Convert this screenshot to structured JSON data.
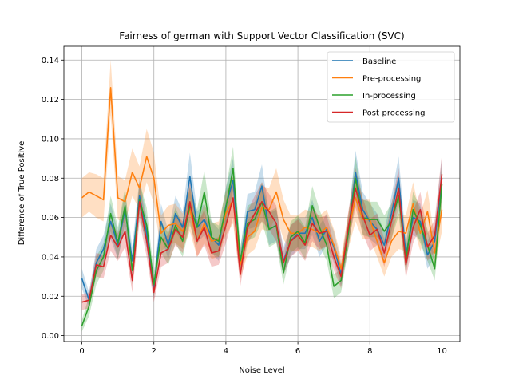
{
  "chart_data": {
    "type": "line",
    "title": "Fairness of german with Support Vector Classification (SVC)",
    "xlabel": "Noise Level",
    "ylabel": "Difference of True Positive",
    "xlim": [
      -0.5,
      10.5
    ],
    "ylim": [
      -0.003,
      0.147
    ],
    "xticks": [
      0,
      2,
      4,
      6,
      8,
      10
    ],
    "yticks": [
      0.0,
      0.02,
      0.04,
      0.06,
      0.08,
      0.1,
      0.12,
      0.14
    ],
    "ytick_labels": [
      "0.00",
      "0.02",
      "0.04",
      "0.06",
      "0.08",
      "0.10",
      "0.12",
      "0.14"
    ],
    "grid": true,
    "legend_position": "top-right",
    "x": [
      0,
      0.2,
      0.4,
      0.6,
      0.8,
      1.0,
      1.2,
      1.4,
      1.6,
      1.8,
      2.0,
      2.2,
      2.4,
      2.6,
      2.8,
      3.0,
      3.2,
      3.4,
      3.6,
      3.8,
      4.0,
      4.2,
      4.4,
      4.6,
      4.8,
      5.0,
      5.2,
      5.4,
      5.6,
      5.8,
      6.0,
      6.2,
      6.4,
      6.6,
      6.8,
      7.0,
      7.2,
      7.4,
      7.6,
      7.8,
      8.0,
      8.2,
      8.4,
      8.6,
      8.8,
      9.0,
      9.2,
      9.4,
      9.6,
      9.8,
      10.0
    ],
    "series": [
      {
        "name": "Baseline",
        "color": "#1f77b4",
        "values": [
          0.029,
          0.018,
          0.037,
          0.044,
          0.058,
          0.046,
          0.064,
          0.038,
          0.071,
          0.052,
          0.024,
          0.058,
          0.046,
          0.062,
          0.055,
          0.081,
          0.055,
          0.059,
          0.05,
          0.046,
          0.066,
          0.079,
          0.037,
          0.063,
          0.064,
          0.076,
          0.054,
          0.056,
          0.038,
          0.048,
          0.052,
          0.052,
          0.06,
          0.048,
          0.054,
          0.045,
          0.031,
          0.052,
          0.083,
          0.064,
          0.058,
          0.054,
          0.046,
          0.062,
          0.08,
          0.041,
          0.06,
          0.058,
          0.041,
          0.048,
          0.08
        ],
        "lower": [
          0.024,
          0.014,
          0.031,
          0.037,
          0.049,
          0.039,
          0.055,
          0.031,
          0.062,
          0.044,
          0.019,
          0.05,
          0.039,
          0.053,
          0.047,
          0.07,
          0.047,
          0.051,
          0.042,
          0.038,
          0.057,
          0.068,
          0.031,
          0.054,
          0.055,
          0.065,
          0.046,
          0.048,
          0.031,
          0.04,
          0.044,
          0.044,
          0.051,
          0.04,
          0.046,
          0.037,
          0.025,
          0.044,
          0.072,
          0.055,
          0.049,
          0.046,
          0.039,
          0.053,
          0.069,
          0.034,
          0.051,
          0.049,
          0.034,
          0.04,
          0.069
        ],
        "upper": [
          0.034,
          0.022,
          0.044,
          0.051,
          0.067,
          0.053,
          0.073,
          0.045,
          0.08,
          0.06,
          0.029,
          0.067,
          0.053,
          0.071,
          0.063,
          0.093,
          0.063,
          0.067,
          0.058,
          0.054,
          0.075,
          0.09,
          0.044,
          0.072,
          0.073,
          0.087,
          0.062,
          0.064,
          0.045,
          0.056,
          0.06,
          0.06,
          0.069,
          0.056,
          0.062,
          0.053,
          0.037,
          0.06,
          0.094,
          0.073,
          0.067,
          0.062,
          0.053,
          0.071,
          0.091,
          0.048,
          0.069,
          0.067,
          0.048,
          0.056,
          0.091
        ]
      },
      {
        "name": "Pre-processing",
        "color": "#ff7f0e",
        "values": [
          0.07,
          0.073,
          0.071,
          0.069,
          0.126,
          0.07,
          0.068,
          0.083,
          0.075,
          0.091,
          0.08,
          0.052,
          0.056,
          0.057,
          0.053,
          0.064,
          0.048,
          0.057,
          0.048,
          0.049,
          0.062,
          0.069,
          0.036,
          0.05,
          0.053,
          0.065,
          0.064,
          0.073,
          0.059,
          0.052,
          0.052,
          0.055,
          0.054,
          0.052,
          0.055,
          0.046,
          0.034,
          0.053,
          0.07,
          0.059,
          0.059,
          0.048,
          0.037,
          0.048,
          0.053,
          0.052,
          0.067,
          0.052,
          0.063,
          0.042,
          0.064
        ],
        "lower": [
          0.06,
          0.063,
          0.06,
          0.058,
          0.112,
          0.059,
          0.057,
          0.071,
          0.064,
          0.078,
          0.067,
          0.043,
          0.046,
          0.047,
          0.044,
          0.053,
          0.04,
          0.047,
          0.039,
          0.04,
          0.051,
          0.057,
          0.029,
          0.041,
          0.044,
          0.054,
          0.053,
          0.061,
          0.049,
          0.043,
          0.043,
          0.046,
          0.045,
          0.043,
          0.046,
          0.038,
          0.028,
          0.044,
          0.058,
          0.049,
          0.049,
          0.04,
          0.03,
          0.04,
          0.044,
          0.043,
          0.056,
          0.043,
          0.052,
          0.035,
          0.053
        ],
        "upper": [
          0.08,
          0.083,
          0.082,
          0.08,
          0.14,
          0.081,
          0.079,
          0.095,
          0.086,
          0.105,
          0.093,
          0.061,
          0.066,
          0.067,
          0.062,
          0.075,
          0.056,
          0.067,
          0.057,
          0.058,
          0.073,
          0.081,
          0.043,
          0.059,
          0.062,
          0.076,
          0.075,
          0.085,
          0.069,
          0.061,
          0.061,
          0.064,
          0.063,
          0.061,
          0.064,
          0.054,
          0.04,
          0.062,
          0.082,
          0.069,
          0.069,
          0.056,
          0.044,
          0.056,
          0.062,
          0.061,
          0.078,
          0.061,
          0.074,
          0.049,
          0.075
        ]
      },
      {
        "name": "In-processing",
        "color": "#2ca02c",
        "values": [
          0.005,
          0.015,
          0.033,
          0.04,
          0.062,
          0.047,
          0.066,
          0.033,
          0.069,
          0.056,
          0.026,
          0.05,
          0.044,
          0.056,
          0.048,
          0.066,
          0.055,
          0.073,
          0.05,
          0.048,
          0.065,
          0.085,
          0.038,
          0.057,
          0.059,
          0.068,
          0.054,
          0.056,
          0.032,
          0.05,
          0.053,
          0.047,
          0.066,
          0.055,
          0.046,
          0.025,
          0.028,
          0.052,
          0.08,
          0.06,
          0.059,
          0.059,
          0.053,
          0.058,
          0.071,
          0.038,
          0.064,
          0.056,
          0.046,
          0.034,
          0.077
        ],
        "lower": [
          0.002,
          0.01,
          0.026,
          0.033,
          0.053,
          0.039,
          0.057,
          0.026,
          0.06,
          0.047,
          0.02,
          0.042,
          0.036,
          0.047,
          0.04,
          0.056,
          0.046,
          0.062,
          0.042,
          0.04,
          0.055,
          0.074,
          0.031,
          0.048,
          0.05,
          0.058,
          0.045,
          0.047,
          0.026,
          0.042,
          0.045,
          0.039,
          0.056,
          0.046,
          0.038,
          0.019,
          0.022,
          0.044,
          0.069,
          0.051,
          0.05,
          0.05,
          0.045,
          0.049,
          0.061,
          0.031,
          0.055,
          0.047,
          0.038,
          0.028,
          0.066
        ],
        "upper": [
          0.008,
          0.02,
          0.04,
          0.047,
          0.071,
          0.055,
          0.075,
          0.04,
          0.078,
          0.065,
          0.032,
          0.058,
          0.052,
          0.065,
          0.056,
          0.076,
          0.064,
          0.084,
          0.058,
          0.056,
          0.075,
          0.096,
          0.045,
          0.066,
          0.068,
          0.078,
          0.063,
          0.065,
          0.038,
          0.058,
          0.061,
          0.055,
          0.076,
          0.064,
          0.054,
          0.031,
          0.034,
          0.06,
          0.091,
          0.069,
          0.068,
          0.068,
          0.061,
          0.067,
          0.081,
          0.045,
          0.073,
          0.065,
          0.054,
          0.04,
          0.088
        ]
      },
      {
        "name": "Post-processing",
        "color": "#d62728",
        "values": [
          0.017,
          0.018,
          0.036,
          0.035,
          0.051,
          0.045,
          0.053,
          0.028,
          0.068,
          0.048,
          0.022,
          0.042,
          0.044,
          0.054,
          0.05,
          0.068,
          0.048,
          0.055,
          0.042,
          0.043,
          0.056,
          0.07,
          0.031,
          0.055,
          0.062,
          0.068,
          0.063,
          0.057,
          0.037,
          0.048,
          0.051,
          0.046,
          0.057,
          0.052,
          0.053,
          0.04,
          0.03,
          0.055,
          0.075,
          0.061,
          0.051,
          0.054,
          0.042,
          0.058,
          0.075,
          0.036,
          0.055,
          0.064,
          0.045,
          0.051,
          0.082
        ],
        "lower": [
          0.013,
          0.014,
          0.03,
          0.029,
          0.043,
          0.038,
          0.045,
          0.022,
          0.058,
          0.04,
          0.017,
          0.035,
          0.037,
          0.046,
          0.042,
          0.058,
          0.04,
          0.046,
          0.035,
          0.036,
          0.047,
          0.06,
          0.025,
          0.047,
          0.053,
          0.058,
          0.054,
          0.048,
          0.031,
          0.04,
          0.043,
          0.038,
          0.048,
          0.044,
          0.045,
          0.033,
          0.024,
          0.047,
          0.065,
          0.052,
          0.043,
          0.046,
          0.035,
          0.049,
          0.065,
          0.029,
          0.047,
          0.055,
          0.038,
          0.043,
          0.072
        ],
        "upper": [
          0.021,
          0.022,
          0.042,
          0.041,
          0.059,
          0.052,
          0.061,
          0.034,
          0.078,
          0.056,
          0.027,
          0.049,
          0.051,
          0.062,
          0.058,
          0.078,
          0.056,
          0.064,
          0.049,
          0.05,
          0.065,
          0.08,
          0.037,
          0.063,
          0.071,
          0.078,
          0.072,
          0.066,
          0.043,
          0.056,
          0.059,
          0.054,
          0.066,
          0.06,
          0.061,
          0.047,
          0.036,
          0.063,
          0.085,
          0.07,
          0.059,
          0.062,
          0.049,
          0.067,
          0.085,
          0.043,
          0.063,
          0.073,
          0.052,
          0.059,
          0.092
        ]
      }
    ]
  }
}
